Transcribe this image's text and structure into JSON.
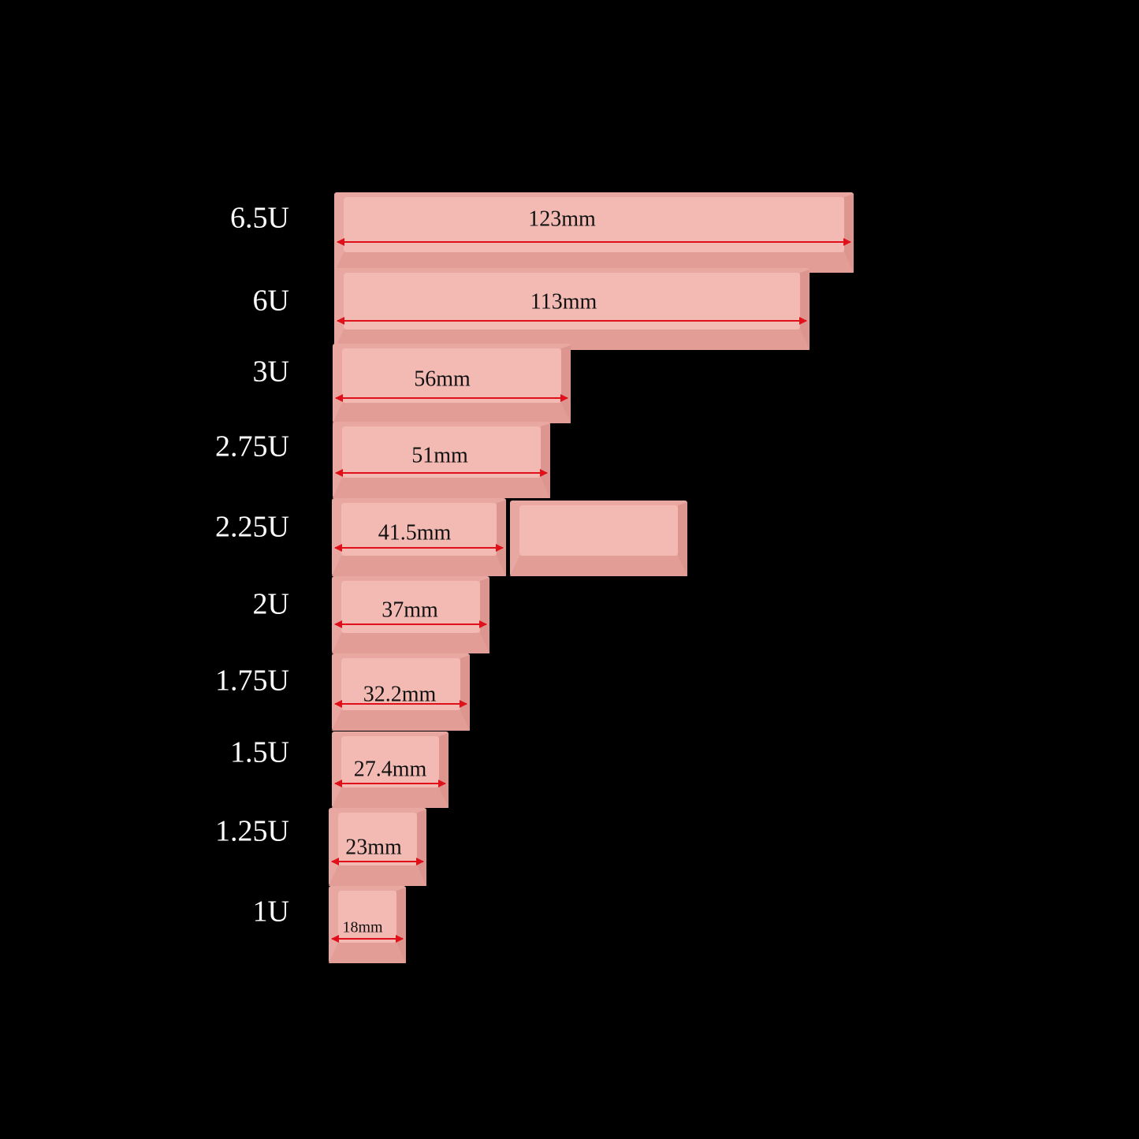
{
  "rows": [
    {
      "size": "6.5U",
      "length": "123mm"
    },
    {
      "size": "6U",
      "length": "113mm"
    },
    {
      "size": "3U",
      "length": "56mm"
    },
    {
      "size": "2.75U",
      "length": "51mm"
    },
    {
      "size": "2.25U",
      "length": "41.5mm"
    },
    {
      "size": "2U",
      "length": "37mm"
    },
    {
      "size": "1.75U",
      "length": "32.2mm"
    },
    {
      "size": "1.5U",
      "length": "27.4mm"
    },
    {
      "size": "1.25U",
      "length": "23mm"
    },
    {
      "size": "1U",
      "length": "18mm"
    }
  ]
}
